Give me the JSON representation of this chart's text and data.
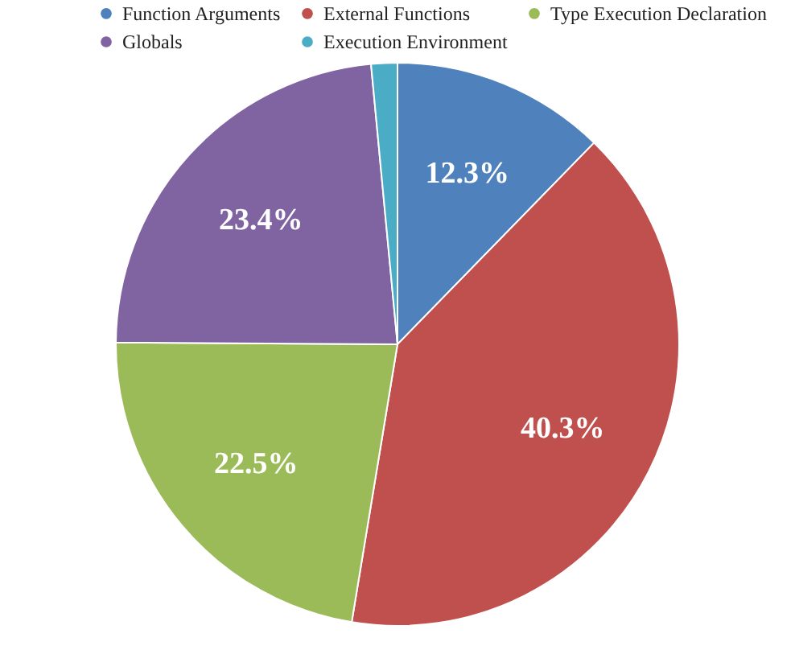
{
  "chart_data": {
    "type": "pie",
    "categories": [
      "Function Arguments",
      "External Functions",
      "Type Execution Declaration",
      "Globals",
      "Execution Environment"
    ],
    "values": [
      12.3,
      40.3,
      22.5,
      23.4,
      1.5
    ],
    "colors": [
      "#4f81bd",
      "#c0504d",
      "#9bbb59",
      "#8064a2",
      "#4bacc6"
    ],
    "value_labels": [
      "12.3%",
      "40.3%",
      "22.5%",
      "23.4%",
      null
    ],
    "legend": "top"
  }
}
